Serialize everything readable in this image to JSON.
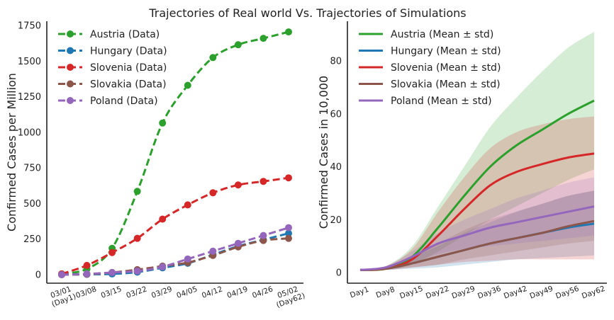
{
  "figure": {
    "title": "Trajectories of Real world  Vs. Trajectories of Simulations"
  },
  "chart_data": [
    {
      "type": "line",
      "title": "",
      "xlabel": "",
      "ylabel": "Confirmed Cases per Million",
      "x_tick_labels": [
        "03/01\n(Day1)",
        "03/08",
        "03/15",
        "03/22",
        "03/29",
        "04/05",
        "04/12",
        "04/19",
        "04/26",
        "05/02\n(Day62)"
      ],
      "y_ticks": [
        0,
        250,
        500,
        750,
        1000,
        1250,
        1500,
        1750
      ],
      "ylim": [
        -60,
        1780
      ],
      "grid": false,
      "legend_position": "top-left",
      "series": [
        {
          "name": "Austria (Data)",
          "color": "#2ca02c",
          "values": [
            5,
            40,
            185,
            585,
            1065,
            1330,
            1525,
            1615,
            1660,
            1705
          ]
        },
        {
          "name": "Hungary (Data)",
          "color": "#1f77b4",
          "values": [
            0,
            2,
            5,
            18,
            48,
            80,
            140,
            200,
            245,
            290
          ]
        },
        {
          "name": "Slovenia (Data)",
          "color": "#d62728",
          "values": [
            5,
            65,
            155,
            255,
            390,
            490,
            575,
            630,
            655,
            680
          ]
        },
        {
          "name": "Slovakia (Data)",
          "color": "#8c564b",
          "values": [
            0,
            3,
            15,
            35,
            60,
            85,
            135,
            195,
            240,
            255
          ]
        },
        {
          "name": "Poland (Data)",
          "color": "#9467bd",
          "values": [
            0,
            5,
            15,
            25,
            55,
            110,
            165,
            220,
            275,
            330
          ]
        }
      ]
    },
    {
      "type": "line",
      "title": "",
      "xlabel": "",
      "ylabel": "Confirmed Cases in 10,000",
      "x_tick_labels": [
        "Day1",
        "Day8",
        "Day15",
        "Day22",
        "Day29",
        "Day36",
        "Day42",
        "Day49",
        "Day56",
        "Day62"
      ],
      "y_ticks": [
        0,
        20,
        40,
        60,
        80
      ],
      "ylim": [
        -4,
        95
      ],
      "grid": false,
      "legend_position": "top-left",
      "band": "mean ± std",
      "series": [
        {
          "name": "Austria (Mean ± std)",
          "color": "#2ca02c",
          "mean": [
            1,
            1.5,
            6,
            17,
            29,
            40,
            48,
            54,
            60,
            65
          ],
          "lower": [
            1,
            1.2,
            3,
            8,
            14,
            20,
            25,
            30,
            35,
            39
          ],
          "upper": [
            1,
            2.5,
            10,
            25,
            40,
            55,
            66,
            76,
            85,
            91
          ]
        },
        {
          "name": "Hungary (Mean ± std)",
          "color": "#1f77b4",
          "mean": [
            1,
            1.5,
            3.5,
            6,
            8.5,
            11,
            13,
            15,
            17,
            18.5
          ],
          "lower": [
            1,
            1,
            1.5,
            2,
            3,
            4,
            5,
            5.5,
            6,
            6.5
          ],
          "upper": [
            1,
            2,
            6,
            10,
            15,
            19,
            23,
            26,
            29,
            31
          ]
        },
        {
          "name": "Slovenia (Mean ± std)",
          "color": "#d62728",
          "mean": [
            1,
            1.5,
            5,
            14,
            24,
            33,
            38,
            41,
            43.5,
            45
          ],
          "lower": [
            1,
            1,
            2,
            3,
            4,
            4.5,
            5,
            5,
            5,
            5
          ],
          "upper": [
            1,
            2.5,
            9,
            23,
            36,
            47,
            53,
            56,
            58,
            59
          ]
        },
        {
          "name": "Slovakia (Mean ± std)",
          "color": "#8c564b",
          "mean": [
            1,
            1.5,
            3.5,
            6,
            8.5,
            11,
            13,
            15,
            17.5,
            19.5
          ],
          "lower": [
            1,
            1.2,
            2,
            3,
            5,
            6.5,
            8,
            9.5,
            11,
            12
          ],
          "upper": [
            1,
            2,
            6,
            11,
            16,
            20,
            23,
            26,
            29,
            31
          ]
        },
        {
          "name": "Poland (Mean ± std)",
          "color": "#9467bd",
          "mean": [
            1,
            2,
            6,
            11,
            14,
            17,
            19,
            21,
            23,
            25
          ],
          "lower": [
            1,
            1.5,
            4,
            7,
            9,
            10,
            11,
            12,
            13,
            14
          ],
          "upper": [
            1,
            2.5,
            8,
            15,
            20,
            24,
            28,
            31,
            34,
            36
          ]
        }
      ]
    }
  ]
}
